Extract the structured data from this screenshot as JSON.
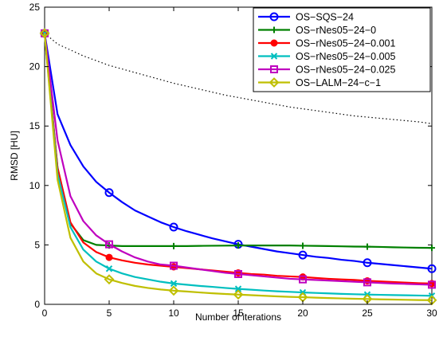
{
  "chart_data": {
    "type": "line",
    "title": "",
    "xlabel": "Number of iterations",
    "ylabel": "RMSD [HU]",
    "xlim": [
      0,
      30
    ],
    "ylim": [
      0,
      25
    ],
    "xticks": [
      0,
      5,
      10,
      15,
      20,
      25,
      30
    ],
    "yticks": [
      0,
      5,
      10,
      15,
      20,
      25
    ],
    "grid": false,
    "legend_position": "top-right",
    "x": [
      0,
      1,
      2,
      3,
      4,
      5,
      6,
      7,
      8,
      9,
      10,
      11,
      12,
      13,
      14,
      15,
      16,
      17,
      18,
      19,
      20,
      21,
      22,
      23,
      24,
      25,
      26,
      27,
      28,
      29,
      30
    ],
    "series": [
      {
        "name": "OS−SQS−24",
        "color": "#0000ff",
        "marker": "circle",
        "values": [
          22.8,
          16.0,
          13.4,
          11.6,
          10.3,
          9.4,
          8.6,
          7.9,
          7.4,
          6.9,
          6.5,
          6.15,
          5.85,
          5.55,
          5.3,
          5.05,
          4.85,
          4.65,
          4.45,
          4.3,
          4.15,
          4.0,
          3.9,
          3.75,
          3.65,
          3.5,
          3.4,
          3.3,
          3.2,
          3.1,
          3.0
        ]
      },
      {
        "name": "OS−rNes05−24−0",
        "color": "#008000",
        "marker": "plus",
        "values": [
          22.8,
          11.5,
          6.8,
          5.4,
          5.0,
          4.95,
          4.9,
          4.9,
          4.9,
          4.9,
          4.9,
          4.9,
          4.92,
          4.93,
          4.94,
          4.95,
          4.95,
          4.95,
          4.95,
          4.95,
          4.93,
          4.92,
          4.9,
          4.88,
          4.86,
          4.85,
          4.83,
          4.8,
          4.78,
          4.76,
          4.75
        ]
      },
      {
        "name": "OS−rNes05−24−0.001",
        "color": "#ff0000",
        "marker": "dot",
        "values": [
          22.8,
          11.5,
          6.9,
          5.2,
          4.4,
          3.95,
          3.7,
          3.5,
          3.35,
          3.25,
          3.15,
          3.05,
          2.95,
          2.85,
          2.75,
          2.65,
          2.55,
          2.5,
          2.4,
          2.35,
          2.3,
          2.22,
          2.15,
          2.1,
          2.05,
          1.98,
          1.93,
          1.88,
          1.83,
          1.78,
          1.75
        ]
      },
      {
        "name": "OS−rNes05−24−0.005",
        "color": "#00bfbf",
        "marker": "x",
        "values": [
          22.8,
          11.0,
          6.5,
          4.6,
          3.6,
          3.0,
          2.6,
          2.3,
          2.1,
          1.9,
          1.75,
          1.65,
          1.55,
          1.47,
          1.38,
          1.3,
          1.23,
          1.16,
          1.1,
          1.05,
          1.0,
          0.96,
          0.92,
          0.88,
          0.85,
          0.82,
          0.8,
          0.78,
          0.76,
          0.74,
          0.72
        ]
      },
      {
        "name": "OS−rNes05−24−0.025",
        "color": "#bf00bf",
        "marker": "square",
        "values": [
          22.8,
          13.8,
          9.1,
          7.0,
          5.8,
          5.05,
          4.45,
          3.95,
          3.6,
          3.35,
          3.25,
          3.1,
          2.95,
          2.8,
          2.65,
          2.55,
          2.45,
          2.35,
          2.25,
          2.15,
          2.1,
          2.05,
          2.0,
          1.95,
          1.9,
          1.85,
          1.8,
          1.75,
          1.72,
          1.68,
          1.65
        ]
      },
      {
        "name": "OS−LALM−24−c−1",
        "color": "#bfbf00",
        "marker": "diamond",
        "values": [
          22.8,
          10.5,
          5.6,
          3.6,
          2.6,
          2.1,
          1.8,
          1.55,
          1.38,
          1.25,
          1.15,
          1.08,
          1.0,
          0.93,
          0.87,
          0.82,
          0.77,
          0.72,
          0.67,
          0.63,
          0.6,
          0.56,
          0.53,
          0.5,
          0.47,
          0.45,
          0.42,
          0.4,
          0.38,
          0.36,
          0.35
        ]
      },
      {
        "name": "",
        "color": "#000000",
        "marker": "none",
        "dashed": true,
        "values": [
          22.8,
          21.9,
          21.4,
          20.9,
          20.5,
          20.1,
          19.8,
          19.5,
          19.2,
          18.9,
          18.6,
          18.35,
          18.1,
          17.85,
          17.6,
          17.4,
          17.2,
          17.0,
          16.8,
          16.6,
          16.45,
          16.3,
          16.15,
          16.0,
          15.85,
          15.75,
          15.65,
          15.55,
          15.45,
          15.35,
          15.2
        ]
      }
    ]
  }
}
